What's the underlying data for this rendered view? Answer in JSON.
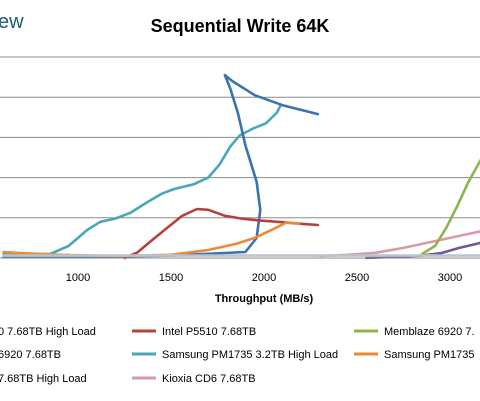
{
  "brand_fragment": "ew",
  "chart_data": {
    "type": "line",
    "title": "Sequential Write 64K",
    "xlabel": "Throughput (MB/s)",
    "ylabel": "",
    "xlim": [
      600,
      3200
    ],
    "ylim": [
      0,
      5
    ],
    "x_ticks": [
      "1000",
      "1500",
      "2000",
      "2500",
      "3000"
    ],
    "y_grid": [
      1,
      2,
      3,
      4,
      5
    ],
    "grid": true,
    "legend_position": "bottom",
    "series": [
      {
        "name": "Samsung PM1735 3.2TB High Load",
        "color": "#4aa7b8",
        "points": [
          [
            600,
            0.1
          ],
          [
            850,
            0.1
          ],
          [
            950,
            0.3
          ],
          [
            1050,
            0.7
          ],
          [
            1120,
            0.9
          ],
          [
            1200,
            0.98
          ],
          [
            1280,
            1.12
          ],
          [
            1370,
            1.38
          ],
          [
            1450,
            1.6
          ],
          [
            1520,
            1.72
          ],
          [
            1620,
            1.83
          ],
          [
            1700,
            2.0
          ],
          [
            1760,
            2.32
          ],
          [
            1820,
            2.78
          ],
          [
            1870,
            3.05
          ],
          [
            1940,
            3.22
          ],
          [
            2010,
            3.35
          ],
          [
            2070,
            3.62
          ],
          [
            2090,
            3.8
          ]
        ]
      },
      {
        "name": "",
        "color": "#3a73ad",
        "points": [
          [
            600,
            0.03
          ],
          [
            1000,
            0.03
          ],
          [
            1500,
            0.06
          ],
          [
            1900,
            0.15
          ],
          [
            1960,
            0.5
          ],
          [
            1980,
            1.2
          ],
          [
            1960,
            1.9
          ],
          [
            1900,
            2.8
          ],
          [
            1860,
            3.6
          ],
          [
            1820,
            4.2
          ],
          [
            1790,
            4.55
          ],
          [
            1830,
            4.4
          ],
          [
            1950,
            4.05
          ],
          [
            2100,
            3.8
          ],
          [
            2290,
            3.58
          ]
        ]
      },
      {
        "name": "Intel P5510 7.68TB",
        "color": "#b5413c",
        "points": [
          [
            1250,
            0.0
          ],
          [
            1320,
            0.14
          ],
          [
            1400,
            0.45
          ],
          [
            1480,
            0.75
          ],
          [
            1560,
            1.05
          ],
          [
            1640,
            1.22
          ],
          [
            1700,
            1.2
          ],
          [
            1790,
            1.05
          ],
          [
            1880,
            0.98
          ],
          [
            1980,
            0.93
          ],
          [
            2100,
            0.89
          ],
          [
            2200,
            0.85
          ],
          [
            2290,
            0.82
          ]
        ]
      },
      {
        "name": "Samsung PM1735",
        "color": "#ea8a3a",
        "points": [
          [
            600,
            0.15
          ],
          [
            700,
            0.12
          ],
          [
            900,
            0.08
          ],
          [
            1200,
            0.05
          ],
          [
            1500,
            0.08
          ],
          [
            1700,
            0.2
          ],
          [
            1850,
            0.35
          ],
          [
            1950,
            0.5
          ],
          [
            2050,
            0.72
          ],
          [
            2120,
            0.88
          ],
          [
            2190,
            0.85
          ]
        ]
      },
      {
        "name": "Kioxia CD6 7.68TB",
        "color": "#d99aa6",
        "points": [
          [
            2300,
            0.05
          ],
          [
            2450,
            0.08
          ],
          [
            2600,
            0.13
          ],
          [
            2750,
            0.25
          ],
          [
            2900,
            0.4
          ],
          [
            3050,
            0.55
          ],
          [
            3200,
            0.7
          ]
        ]
      },
      {
        "name": "",
        "color": "#6f5898",
        "points": [
          [
            2550,
            0.0
          ],
          [
            2700,
            0.03
          ],
          [
            2850,
            0.06
          ],
          [
            2950,
            0.12
          ],
          [
            3050,
            0.25
          ],
          [
            3150,
            0.36
          ],
          [
            3200,
            0.42
          ]
        ]
      },
      {
        "name": "Memblaze 6920",
        "color": "#8db548",
        "points": [
          [
            2850,
            0.1
          ],
          [
            2920,
            0.3
          ],
          [
            2980,
            0.75
          ],
          [
            3040,
            1.3
          ],
          [
            3100,
            1.9
          ],
          [
            3160,
            2.4
          ],
          [
            3200,
            2.7
          ]
        ]
      },
      {
        "name": "",
        "color": "#b8c4d0",
        "points": [
          [
            600,
            0.06
          ],
          [
            1500,
            0.06
          ],
          [
            2500,
            0.06
          ],
          [
            3200,
            0.06
          ]
        ]
      }
    ]
  },
  "legend": [
    {
      "text": "0 7.68TB High Load",
      "color": "#3a73ad"
    },
    {
      "text": "Intel P5510 7.68TB",
      "color": "#b5413c"
    },
    {
      "text": "Memblaze 6920 7.",
      "color": "#8db548"
    },
    {
      "text": " 6920 7.68TB",
      "color": "#6f5898"
    },
    {
      "text": "Samsung PM1735 3.2TB High Load",
      "color": "#4aa7b8"
    },
    {
      "text": "Samsung PM1735",
      "color": "#ea8a3a"
    },
    {
      "text": "7.68TB High Load",
      "color": "#6f5898"
    },
    {
      "text": "Kioxia CD6 7.68TB",
      "color": "#d99aa6"
    }
  ]
}
